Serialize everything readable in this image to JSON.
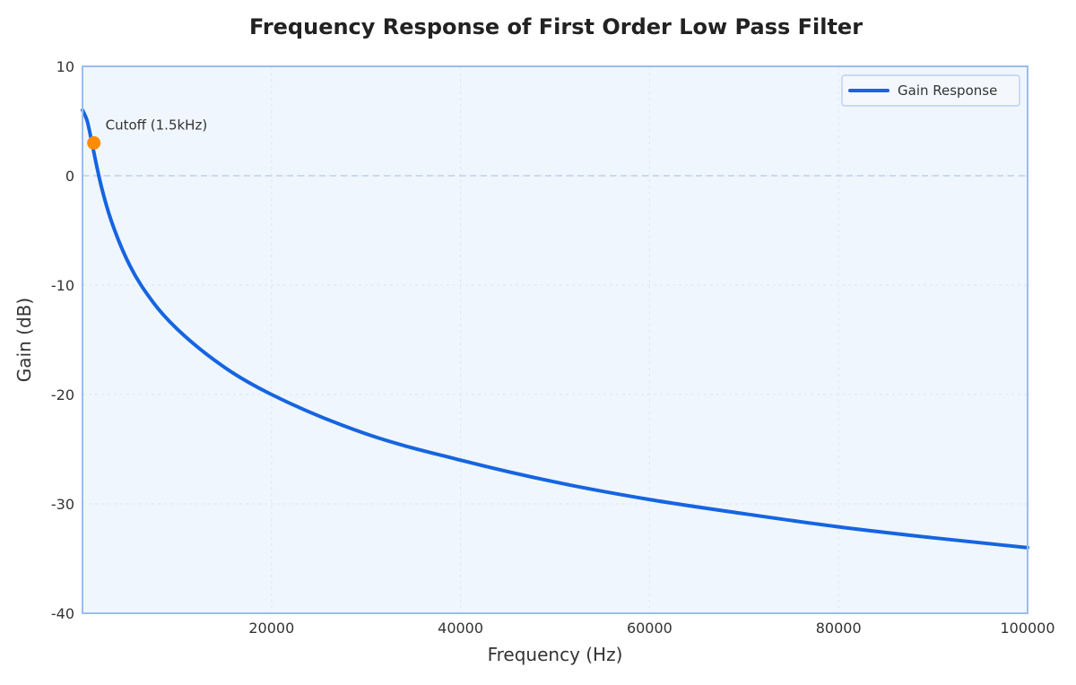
{
  "chart_data": {
    "type": "line",
    "title": "Frequency Response of First Order Low Pass Filter",
    "xlabel": "Frequency (Hz)",
    "ylabel": "Gain (dB)",
    "xlim": [
      0,
      100000
    ],
    "ylim": [
      -40,
      10
    ],
    "x_ticks": [
      20000,
      40000,
      60000,
      80000,
      100000
    ],
    "y_ticks": [
      10,
      0,
      -10,
      -20,
      -30,
      -40
    ],
    "grid": true,
    "reference_line": {
      "y": 0,
      "style": "dashed"
    },
    "legend": {
      "position": "top-right",
      "entries": [
        "Gain Response"
      ]
    },
    "series": [
      {
        "name": "Gain Response",
        "color": "#1565e0",
        "formula": "gain = 6 - 10*log10(1 + (f/1000)^2)",
        "x": [
          0,
          500,
          1000,
          1500,
          2000,
          3000,
          5000,
          7500,
          10000,
          15000,
          20000,
          30000,
          40000,
          50000,
          60000,
          70000,
          80000,
          90000,
          100000
        ],
        "y": [
          6.0,
          5.0,
          3.0,
          0.9,
          -1.0,
          -4.0,
          -8.2,
          -11.6,
          -14.0,
          -17.5,
          -20.0,
          -23.6,
          -26.0,
          -28.0,
          -29.6,
          -30.9,
          -32.1,
          -33.1,
          -34.0
        ]
      }
    ],
    "annotations": [
      {
        "text": "Cutoff (1.5kHz)",
        "x": 1200,
        "y": 3.0,
        "marker_color": "#ff8c00"
      }
    ]
  }
}
